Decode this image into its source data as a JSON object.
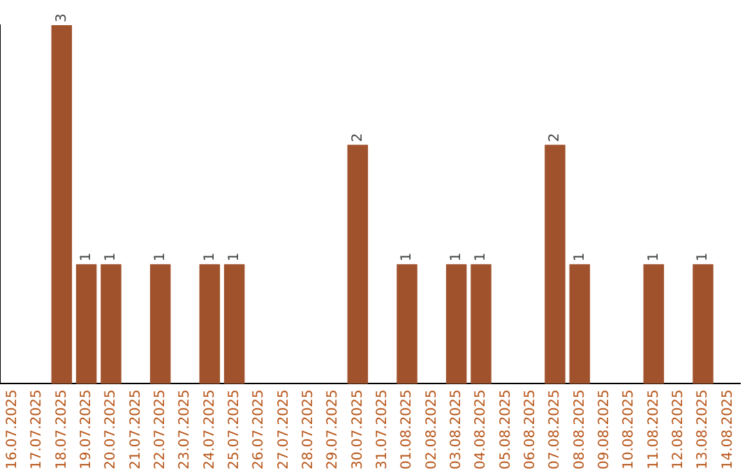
{
  "chart_data": {
    "type": "bar",
    "categories": [
      "16.07.2025",
      "17.07.2025",
      "18.07.2025",
      "19.07.2025",
      "20.07.2025",
      "21.07.2025",
      "22.07.2025",
      "23.07.2025",
      "24.07.2025",
      "25.07.2025",
      "26.07.2025",
      "27.07.2025",
      "28.07.2025",
      "29.07.2025",
      "30.07.2025",
      "31.07.2025",
      "01.08.2025",
      "02.08.2025",
      "03.08.2025",
      "04.08.2025",
      "05.08.2025",
      "06.08.2025",
      "07.08.2025",
      "08.08.2025",
      "09.08.2025",
      "10.08.2025",
      "11.08.2025",
      "12.08.2025",
      "13.08.2025",
      "14.08.2025"
    ],
    "values": [
      0,
      0,
      3,
      1,
      1,
      0,
      1,
      0,
      1,
      1,
      0,
      0,
      0,
      0,
      2,
      0,
      1,
      0,
      1,
      1,
      0,
      0,
      2,
      1,
      0,
      0,
      1,
      0,
      1,
      0
    ],
    "value_labels": [
      null,
      null,
      "3",
      "1",
      "1",
      null,
      "1",
      null,
      "1",
      "1",
      null,
      null,
      null,
      null,
      "2",
      null,
      "1",
      null,
      "1",
      "1",
      null,
      null,
      "2",
      "1",
      null,
      null,
      "1",
      null,
      "1",
      null
    ],
    "color": "#a0522d",
    "grid": false,
    "legend": false,
    "tick_labels": "x"
  }
}
